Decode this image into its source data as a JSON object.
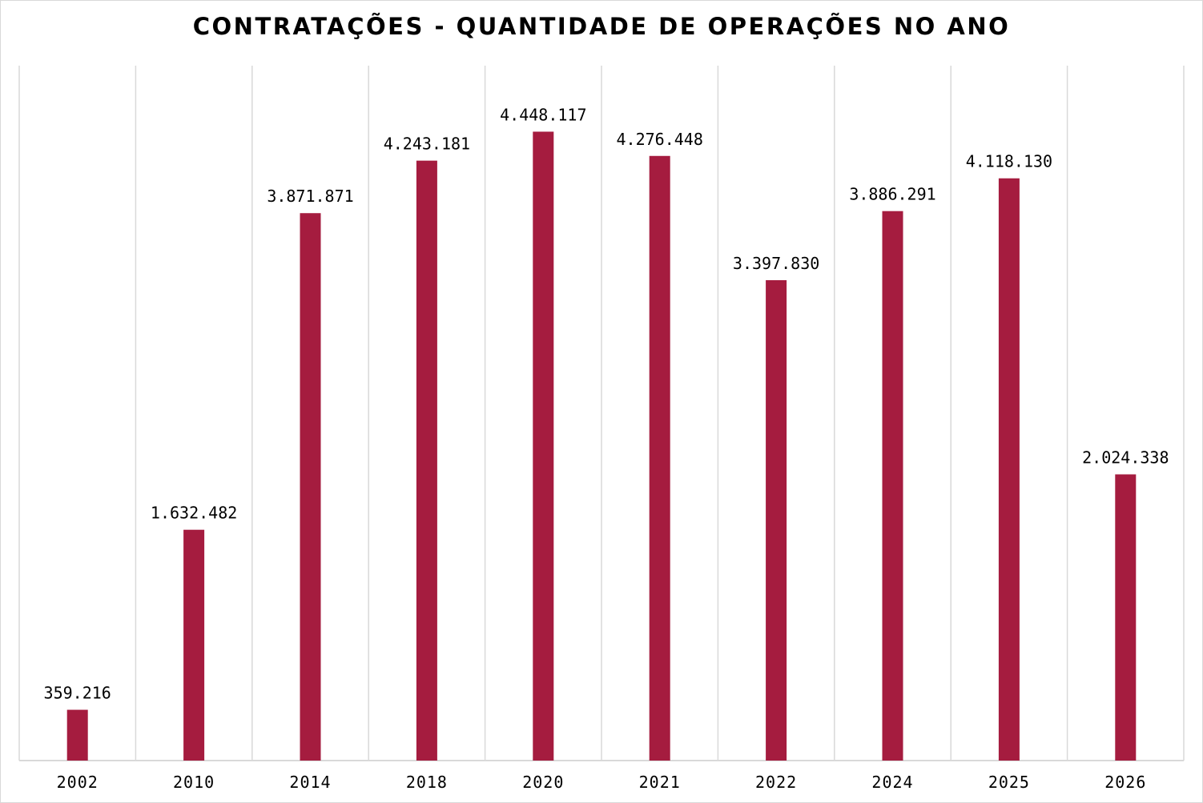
{
  "chart_data": {
    "type": "bar",
    "title": "CONTRATAÇÕES - QUANTIDADE DE OPERAÇÕES NO ANO",
    "xlabel": "",
    "ylabel": "",
    "categories": [
      "2002",
      "2010",
      "2014",
      "2018",
      "2020",
      "2021",
      "2022",
      "2024",
      "2025",
      "2026"
    ],
    "values": [
      359216,
      1632482,
      3871871,
      4243181,
      4448117,
      4276448,
      3397830,
      3886291,
      4118130,
      2024338
    ],
    "data_labels": [
      "359.216",
      "1.632.482",
      "3.871.871",
      "4.243.181",
      "4.448.117",
      "4.276.448",
      "3.397.830",
      "3.886.291",
      "4.118.130",
      "2.024.338"
    ],
    "ylim": [
      0,
      5000000
    ],
    "grid": "vertical category separators",
    "legend": "none",
    "colors": {
      "bar": "#a51c3f",
      "grid": "#d9d9d9",
      "text": "#000000"
    }
  }
}
